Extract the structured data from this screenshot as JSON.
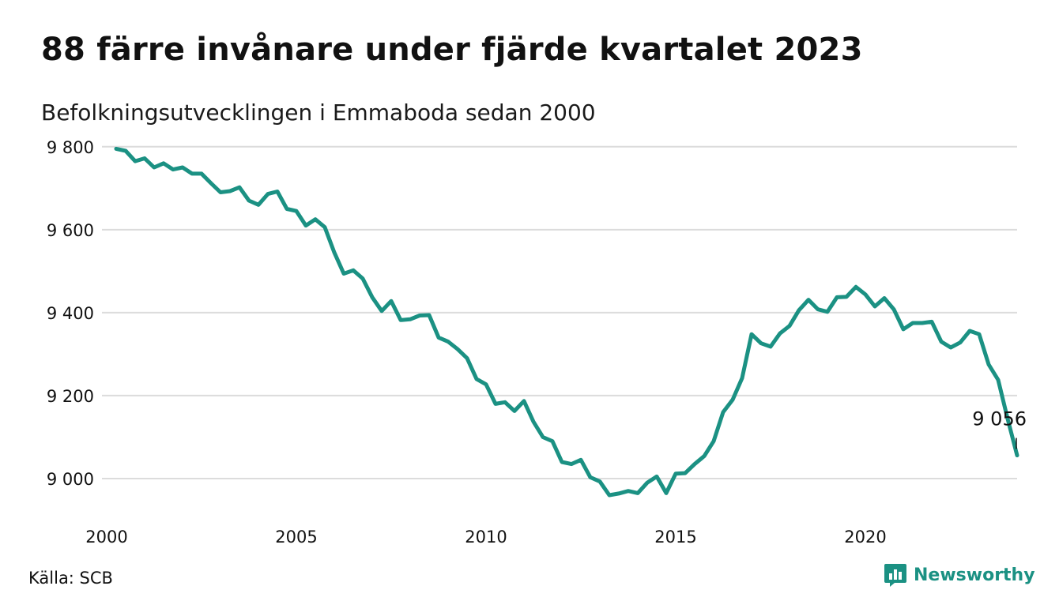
{
  "header": {
    "title": "88 färre invånare under fjärde kvartalet 2023",
    "subtitle": "Befolkningsutvecklingen i Emmaboda sedan 2000"
  },
  "footer": {
    "source": "Källa: SCB",
    "brand": "Newsworthy",
    "brand_color": "#1b9183"
  },
  "chart_data": {
    "type": "line",
    "title": "88 färre invånare under fjärde kvartalet 2023",
    "subtitle": "Befolkningsutvecklingen i Emmaboda sedan 2000",
    "xlabel": "",
    "ylabel": "",
    "xlim": [
      2000,
      2024
    ],
    "ylim": [
      8920,
      9830
    ],
    "x_ticks": [
      2000,
      2005,
      2010,
      2015,
      2020
    ],
    "x_tick_labels": [
      "2000",
      "2005",
      "2010",
      "2015",
      "2020"
    ],
    "y_ticks": [
      9000,
      9200,
      9400,
      9600,
      9800
    ],
    "y_tick_labels": [
      "9 000",
      "9 200",
      "9 400",
      "9 600",
      "9 800"
    ],
    "grid": "horizontal",
    "line_color": "#1b9183",
    "series": [
      {
        "x": [
          2000.25,
          2000.5,
          2000.75,
          2001.0,
          2001.25,
          2001.5,
          2001.75,
          2002.0,
          2002.25,
          2002.5,
          2002.75,
          2003.0,
          2003.25,
          2003.5,
          2003.75,
          2004.0,
          2004.25,
          2004.5,
          2004.75,
          2005.0,
          2005.25,
          2005.5,
          2005.75,
          2006.0,
          2006.25,
          2006.5,
          2006.75,
          2007.0,
          2007.25,
          2007.5,
          2007.75,
          2008.0,
          2008.25,
          2008.5,
          2008.75,
          2009.0,
          2009.25,
          2009.5,
          2009.75,
          2010.0,
          2010.25,
          2010.5,
          2010.75,
          2011.0,
          2011.25,
          2011.5,
          2011.75,
          2012.0,
          2012.25,
          2012.5,
          2012.75,
          2013.0,
          2013.25,
          2013.5,
          2013.75,
          2014.0,
          2014.25,
          2014.5,
          2014.75,
          2015.0,
          2015.25,
          2015.5,
          2015.75,
          2016.0,
          2016.25,
          2016.5,
          2016.75,
          2017.0,
          2017.25,
          2017.5,
          2017.75,
          2018.0,
          2018.25,
          2018.5,
          2018.75,
          2019.0,
          2019.25,
          2019.5,
          2019.75,
          2020.0,
          2020.25,
          2020.5,
          2020.75,
          2021.0,
          2021.25,
          2021.5,
          2021.75,
          2022.0,
          2022.25,
          2022.5,
          2022.75,
          2023.0,
          2023.25,
          2023.5,
          2023.75,
          2024.0
        ],
        "values": [
          9795,
          9790,
          9765,
          9772,
          9750,
          9760,
          9745,
          9750,
          9735,
          9735,
          9712,
          9690,
          9693,
          9702,
          9670,
          9660,
          9686,
          9692,
          9650,
          9645,
          9610,
          9625,
          9606,
          9545,
          9494,
          9502,
          9482,
          9437,
          9404,
          9428,
          9382,
          9384,
          9393,
          9394,
          9340,
          9330,
          9312,
          9290,
          9240,
          9227,
          9180,
          9184,
          9163,
          9187,
          9137,
          9100,
          9090,
          9040,
          9035,
          9045,
          9003,
          8993,
          8960,
          8964,
          8970,
          8965,
          8990,
          9005,
          8965,
          9012,
          9013,
          9035,
          9054,
          9090,
          9160,
          9190,
          9242,
          9348,
          9326,
          9318,
          9350,
          9368,
          9406,
          9431,
          9408,
          9402,
          9437,
          9438,
          9462,
          9444,
          9415,
          9435,
          9408,
          9360,
          9375,
          9375,
          9378,
          9330,
          9316,
          9328,
          9356,
          9348,
          9275,
          9238,
          9144,
          9056
        ]
      }
    ],
    "annotations": [
      {
        "x": 2024.0,
        "y": 9056,
        "text": "9 056"
      }
    ]
  }
}
